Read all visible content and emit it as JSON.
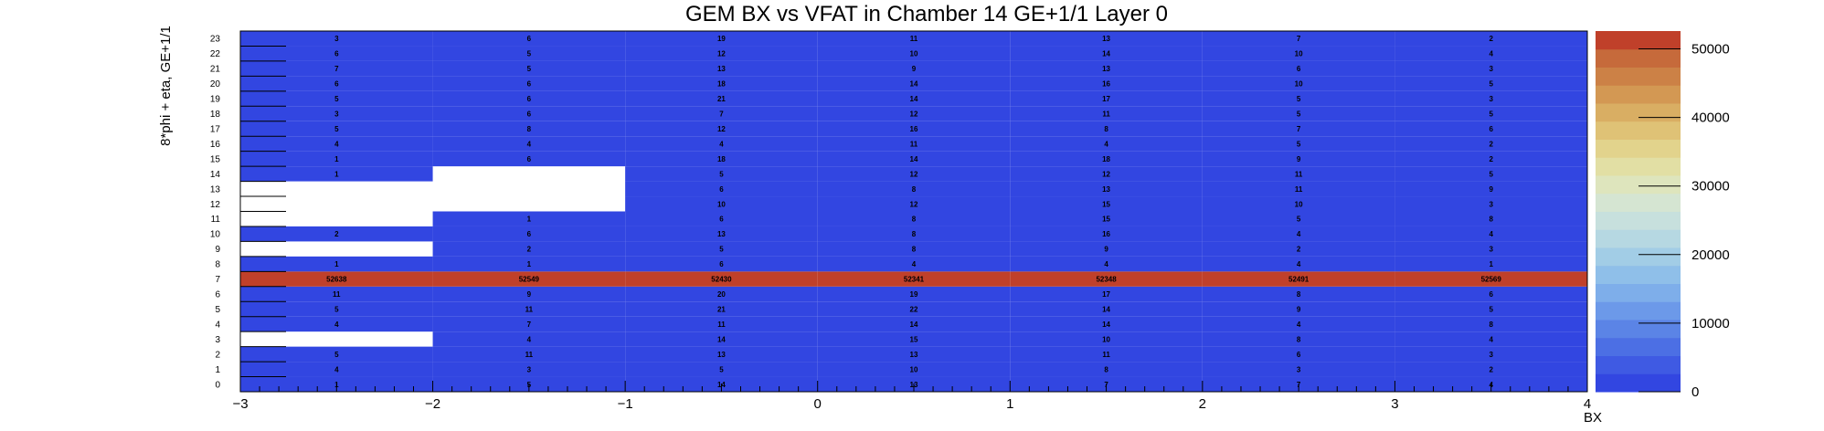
{
  "chart_data": {
    "type": "heatmap",
    "title": "GEM BX vs VFAT in Chamber 14 GE+1/1 Layer 0",
    "xlabel": "BX",
    "ylabel": "8*phi + eta, GE+1/1",
    "xlim": [
      -3,
      4
    ],
    "x_ticks": [
      "−3",
      "−2",
      "−1",
      "0",
      "1",
      "2",
      "3",
      "4"
    ],
    "y_ticks": [
      "0",
      "1",
      "2",
      "3",
      "4",
      "5",
      "6",
      "7",
      "8",
      "9",
      "10",
      "11",
      "12",
      "13",
      "14",
      "15",
      "16",
      "17",
      "18",
      "19",
      "20",
      "21",
      "22",
      "23"
    ],
    "x_bins": [
      -2.5,
      -1.5,
      -0.5,
      0.5,
      1.5,
      2.5,
      3.5
    ],
    "z_ticks": [
      "0",
      "10000",
      "20000",
      "30000",
      "40000",
      "50000"
    ],
    "zlim": [
      0,
      52600
    ],
    "cells": [
      [
        1,
        5,
        14,
        13,
        7,
        7,
        4
      ],
      [
        4,
        3,
        5,
        10,
        8,
        3,
        2
      ],
      [
        5,
        11,
        13,
        13,
        11,
        6,
        3
      ],
      [
        null,
        4,
        14,
        15,
        10,
        8,
        4
      ],
      [
        4,
        7,
        11,
        14,
        14,
        4,
        8
      ],
      [
        5,
        11,
        21,
        22,
        14,
        9,
        5
      ],
      [
        11,
        9,
        20,
        19,
        17,
        8,
        6
      ],
      [
        52638,
        52549,
        52430,
        52341,
        52348,
        52491,
        52569
      ],
      [
        1,
        1,
        6,
        4,
        4,
        4,
        1
      ],
      [
        null,
        2,
        5,
        8,
        9,
        2,
        3
      ],
      [
        2,
        6,
        13,
        8,
        16,
        4,
        4
      ],
      [
        null,
        1,
        6,
        8,
        15,
        5,
        8
      ],
      [
        null,
        null,
        10,
        12,
        15,
        10,
        3
      ],
      [
        null,
        null,
        6,
        8,
        13,
        11,
        9
      ],
      [
        1,
        null,
        5,
        12,
        12,
        11,
        5
      ],
      [
        1,
        6,
        18,
        14,
        18,
        9,
        2
      ],
      [
        4,
        4,
        4,
        11,
        4,
        5,
        2
      ],
      [
        5,
        8,
        12,
        16,
        8,
        7,
        6
      ],
      [
        3,
        6,
        7,
        12,
        11,
        5,
        5
      ],
      [
        5,
        6,
        21,
        14,
        17,
        5,
        3
      ],
      [
        6,
        6,
        18,
        14,
        16,
        10,
        5
      ],
      [
        7,
        5,
        13,
        9,
        13,
        6,
        3
      ],
      [
        6,
        5,
        12,
        10,
        14,
        10,
        4
      ],
      [
        3,
        6,
        19,
        11,
        13,
        7,
        2
      ]
    ],
    "colors": {
      "low": "#3246e1",
      "high": "#c0402a"
    },
    "palette": [
      "#3246e1",
      "#3f5ae3",
      "#4c6fe4",
      "#5b84e6",
      "#6c99e9",
      "#7eaeea",
      "#8fbfe9",
      "#a2cde6",
      "#b6d8e2",
      "#c7e0dd",
      "#d5e5d2",
      "#dee5bd",
      "#e2dfa4",
      "#e2d38c",
      "#dfc276",
      "#d9ae63",
      "#d39853",
      "#cc8146",
      "#c66a3b",
      "#c0402a"
    ]
  }
}
